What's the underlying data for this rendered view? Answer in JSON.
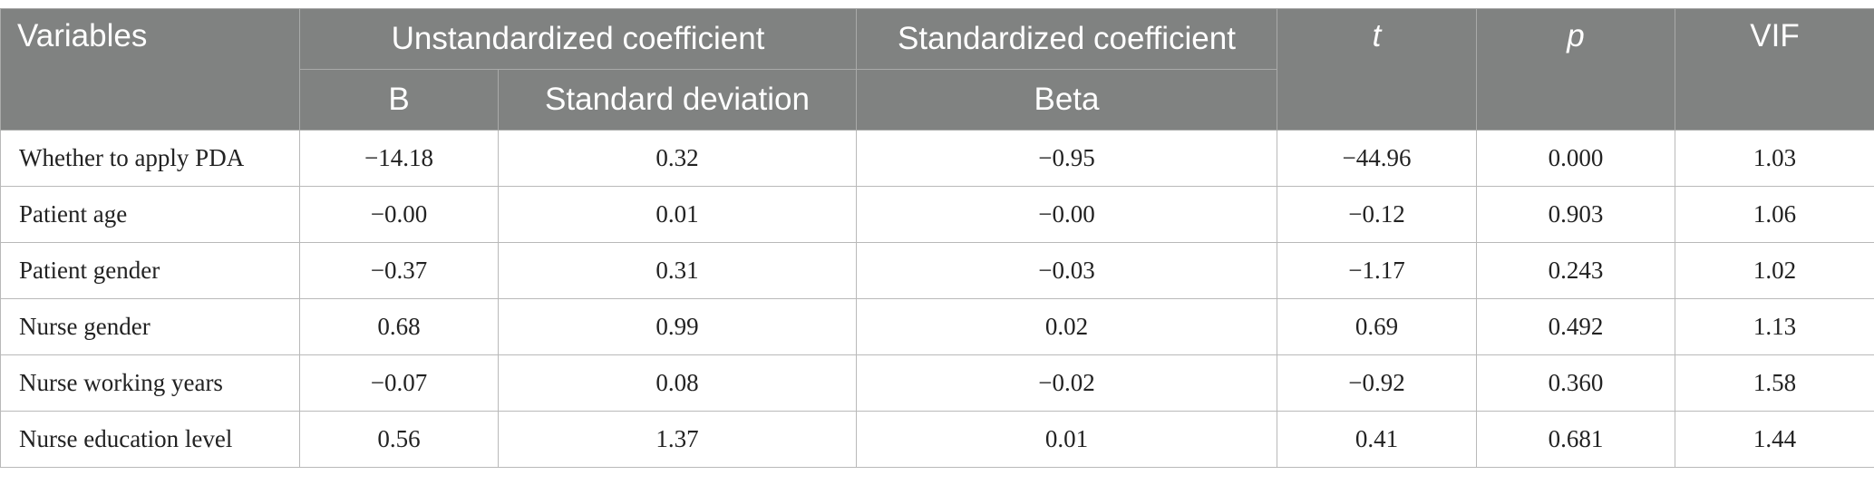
{
  "table": {
    "headers": {
      "variables": "Variables",
      "unstandardized": "Unstandardized coefficient",
      "standardized": "Standardized coefficient",
      "t": "t",
      "p": "p",
      "vif": "VIF",
      "b": "B",
      "standard_deviation": "Standard deviation",
      "beta": "Beta"
    },
    "rows": [
      {
        "variable": "Whether to apply PDA",
        "b": "−14.18",
        "sd": "0.32",
        "beta": "−0.95",
        "t": "−44.96",
        "p": "0.000",
        "vif": "1.03"
      },
      {
        "variable": "Patient age",
        "b": "−0.00",
        "sd": "0.01",
        "beta": "−0.00",
        "t": "−0.12",
        "p": "0.903",
        "vif": "1.06"
      },
      {
        "variable": "Patient gender",
        "b": "−0.37",
        "sd": "0.31",
        "beta": "−0.03",
        "t": "−1.17",
        "p": "0.243",
        "vif": "1.02"
      },
      {
        "variable": "Nurse gender",
        "b": "0.68",
        "sd": "0.99",
        "beta": "0.02",
        "t": "0.69",
        "p": "0.492",
        "vif": "1.13"
      },
      {
        "variable": "Nurse working years",
        "b": "−0.07",
        "sd": "0.08",
        "beta": "−0.02",
        "t": "−0.92",
        "p": "0.360",
        "vif": "1.58"
      },
      {
        "variable": "Nurse education level",
        "b": "0.56",
        "sd": "1.37",
        "beta": "0.01",
        "t": "0.41",
        "p": "0.681",
        "vif": "1.44"
      }
    ]
  },
  "colors": {
    "header_bg": "#808281",
    "header_text": "#ffffff",
    "grid_line": "#b9b9b9"
  }
}
